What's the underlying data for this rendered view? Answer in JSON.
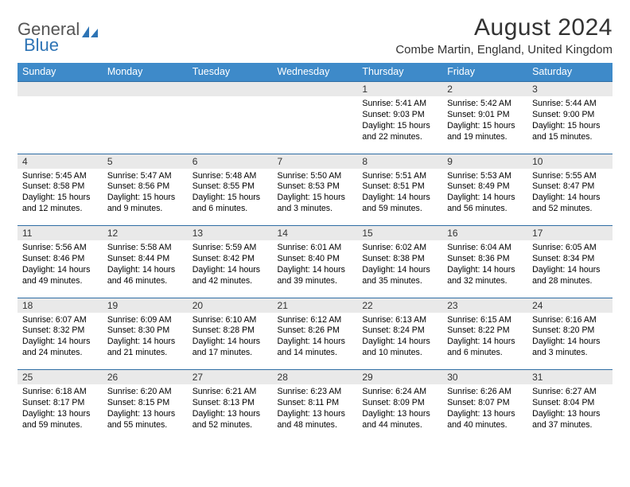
{
  "logo": {
    "text1": "General",
    "text2": "Blue"
  },
  "title": "August 2024",
  "location": "Combe Martin, England, United Kingdom",
  "colors": {
    "header_bg": "#3e8ac9",
    "header_text": "#ffffff",
    "daynum_bg": "#e9e9e9",
    "daynum_border": "#2e6da4",
    "body_bg": "#ffffff",
    "text": "#000000",
    "logo_blue": "#2e74b5",
    "logo_gray": "#555555"
  },
  "day_headers": [
    "Sunday",
    "Monday",
    "Tuesday",
    "Wednesday",
    "Thursday",
    "Friday",
    "Saturday"
  ],
  "weeks": [
    [
      {
        "n": "",
        "sr": "",
        "ss": "",
        "dl": ""
      },
      {
        "n": "",
        "sr": "",
        "ss": "",
        "dl": ""
      },
      {
        "n": "",
        "sr": "",
        "ss": "",
        "dl": ""
      },
      {
        "n": "",
        "sr": "",
        "ss": "",
        "dl": ""
      },
      {
        "n": "1",
        "sr": "Sunrise: 5:41 AM",
        "ss": "Sunset: 9:03 PM",
        "dl": "Daylight: 15 hours and 22 minutes."
      },
      {
        "n": "2",
        "sr": "Sunrise: 5:42 AM",
        "ss": "Sunset: 9:01 PM",
        "dl": "Daylight: 15 hours and 19 minutes."
      },
      {
        "n": "3",
        "sr": "Sunrise: 5:44 AM",
        "ss": "Sunset: 9:00 PM",
        "dl": "Daylight: 15 hours and 15 minutes."
      }
    ],
    [
      {
        "n": "4",
        "sr": "Sunrise: 5:45 AM",
        "ss": "Sunset: 8:58 PM",
        "dl": "Daylight: 15 hours and 12 minutes."
      },
      {
        "n": "5",
        "sr": "Sunrise: 5:47 AM",
        "ss": "Sunset: 8:56 PM",
        "dl": "Daylight: 15 hours and 9 minutes."
      },
      {
        "n": "6",
        "sr": "Sunrise: 5:48 AM",
        "ss": "Sunset: 8:55 PM",
        "dl": "Daylight: 15 hours and 6 minutes."
      },
      {
        "n": "7",
        "sr": "Sunrise: 5:50 AM",
        "ss": "Sunset: 8:53 PM",
        "dl": "Daylight: 15 hours and 3 minutes."
      },
      {
        "n": "8",
        "sr": "Sunrise: 5:51 AM",
        "ss": "Sunset: 8:51 PM",
        "dl": "Daylight: 14 hours and 59 minutes."
      },
      {
        "n": "9",
        "sr": "Sunrise: 5:53 AM",
        "ss": "Sunset: 8:49 PM",
        "dl": "Daylight: 14 hours and 56 minutes."
      },
      {
        "n": "10",
        "sr": "Sunrise: 5:55 AM",
        "ss": "Sunset: 8:47 PM",
        "dl": "Daylight: 14 hours and 52 minutes."
      }
    ],
    [
      {
        "n": "11",
        "sr": "Sunrise: 5:56 AM",
        "ss": "Sunset: 8:46 PM",
        "dl": "Daylight: 14 hours and 49 minutes."
      },
      {
        "n": "12",
        "sr": "Sunrise: 5:58 AM",
        "ss": "Sunset: 8:44 PM",
        "dl": "Daylight: 14 hours and 46 minutes."
      },
      {
        "n": "13",
        "sr": "Sunrise: 5:59 AM",
        "ss": "Sunset: 8:42 PM",
        "dl": "Daylight: 14 hours and 42 minutes."
      },
      {
        "n": "14",
        "sr": "Sunrise: 6:01 AM",
        "ss": "Sunset: 8:40 PM",
        "dl": "Daylight: 14 hours and 39 minutes."
      },
      {
        "n": "15",
        "sr": "Sunrise: 6:02 AM",
        "ss": "Sunset: 8:38 PM",
        "dl": "Daylight: 14 hours and 35 minutes."
      },
      {
        "n": "16",
        "sr": "Sunrise: 6:04 AM",
        "ss": "Sunset: 8:36 PM",
        "dl": "Daylight: 14 hours and 32 minutes."
      },
      {
        "n": "17",
        "sr": "Sunrise: 6:05 AM",
        "ss": "Sunset: 8:34 PM",
        "dl": "Daylight: 14 hours and 28 minutes."
      }
    ],
    [
      {
        "n": "18",
        "sr": "Sunrise: 6:07 AM",
        "ss": "Sunset: 8:32 PM",
        "dl": "Daylight: 14 hours and 24 minutes."
      },
      {
        "n": "19",
        "sr": "Sunrise: 6:09 AM",
        "ss": "Sunset: 8:30 PM",
        "dl": "Daylight: 14 hours and 21 minutes."
      },
      {
        "n": "20",
        "sr": "Sunrise: 6:10 AM",
        "ss": "Sunset: 8:28 PM",
        "dl": "Daylight: 14 hours and 17 minutes."
      },
      {
        "n": "21",
        "sr": "Sunrise: 6:12 AM",
        "ss": "Sunset: 8:26 PM",
        "dl": "Daylight: 14 hours and 14 minutes."
      },
      {
        "n": "22",
        "sr": "Sunrise: 6:13 AM",
        "ss": "Sunset: 8:24 PM",
        "dl": "Daylight: 14 hours and 10 minutes."
      },
      {
        "n": "23",
        "sr": "Sunrise: 6:15 AM",
        "ss": "Sunset: 8:22 PM",
        "dl": "Daylight: 14 hours and 6 minutes."
      },
      {
        "n": "24",
        "sr": "Sunrise: 6:16 AM",
        "ss": "Sunset: 8:20 PM",
        "dl": "Daylight: 14 hours and 3 minutes."
      }
    ],
    [
      {
        "n": "25",
        "sr": "Sunrise: 6:18 AM",
        "ss": "Sunset: 8:17 PM",
        "dl": "Daylight: 13 hours and 59 minutes."
      },
      {
        "n": "26",
        "sr": "Sunrise: 6:20 AM",
        "ss": "Sunset: 8:15 PM",
        "dl": "Daylight: 13 hours and 55 minutes."
      },
      {
        "n": "27",
        "sr": "Sunrise: 6:21 AM",
        "ss": "Sunset: 8:13 PM",
        "dl": "Daylight: 13 hours and 52 minutes."
      },
      {
        "n": "28",
        "sr": "Sunrise: 6:23 AM",
        "ss": "Sunset: 8:11 PM",
        "dl": "Daylight: 13 hours and 48 minutes."
      },
      {
        "n": "29",
        "sr": "Sunrise: 6:24 AM",
        "ss": "Sunset: 8:09 PM",
        "dl": "Daylight: 13 hours and 44 minutes."
      },
      {
        "n": "30",
        "sr": "Sunrise: 6:26 AM",
        "ss": "Sunset: 8:07 PM",
        "dl": "Daylight: 13 hours and 40 minutes."
      },
      {
        "n": "31",
        "sr": "Sunrise: 6:27 AM",
        "ss": "Sunset: 8:04 PM",
        "dl": "Daylight: 13 hours and 37 minutes."
      }
    ]
  ]
}
